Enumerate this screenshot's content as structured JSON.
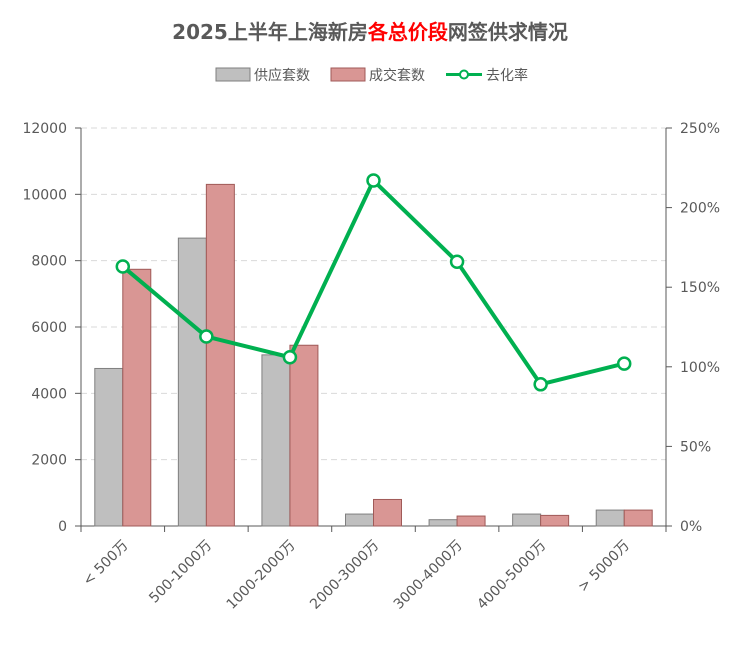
{
  "chart_data": {
    "type": "bar",
    "title": {
      "prefix": "2025上半年上海新房",
      "highlight": "各总价段",
      "suffix": "网签供求情况"
    },
    "categories": [
      "< 500万",
      "500-1000万",
      "1000-2000万",
      "2000-3000万",
      "3000-4000万",
      "4000-5000万",
      "> 5000万"
    ],
    "series": [
      {
        "name": "供应套数",
        "type": "bar",
        "axis": "left",
        "color": "#bfbfbf",
        "stroke": "#7f7f7f",
        "values": [
          4750,
          8680,
          5160,
          360,
          190,
          360,
          480
        ]
      },
      {
        "name": "成交套数",
        "type": "bar",
        "axis": "left",
        "color": "#d99694",
        "stroke": "#a05a58",
        "values": [
          7740,
          10300,
          5450,
          800,
          300,
          320,
          480
        ]
      },
      {
        "name": "去化率",
        "type": "line",
        "axis": "right",
        "color": "#00b050",
        "marker_fill": "#ffffff",
        "values": [
          1.63,
          1.19,
          1.06,
          2.17,
          1.66,
          0.89,
          1.02
        ]
      }
    ],
    "left_axis": {
      "min": 0,
      "max": 12000,
      "ticks": [
        "0",
        "2000",
        "4000",
        "6000",
        "8000",
        "10000",
        "12000"
      ]
    },
    "right_axis": {
      "min": 0,
      "max": 2.5,
      "ticks": [
        "0%",
        "50%",
        "100%",
        "150%",
        "200%",
        "250%"
      ]
    },
    "grid": true,
    "legend_position": "top-center",
    "colors": {
      "text": "#595959",
      "grid": "#d9d9d9",
      "axis": "#595959",
      "highlight": "#ff0000"
    }
  }
}
